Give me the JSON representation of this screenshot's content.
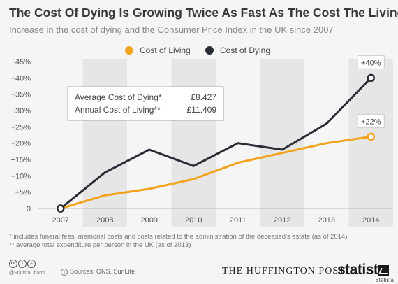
{
  "header": {
    "title": "The Cost Of Dying Is Growing Twice As Fast As The Cost The Living",
    "subtitle": "Increase in the cost of dying and the Consumer Price Index in the UK since 2007"
  },
  "chart_data": {
    "type": "line",
    "x": [
      "2007",
      "2008",
      "2009",
      "2010",
      "2011",
      "2012",
      "2013",
      "2014"
    ],
    "ylim": [
      0,
      45
    ],
    "yticks": [
      "0",
      "+5%",
      "+10%",
      "+15%",
      "+20%",
      "+25%",
      "+30%",
      "+35%",
      "+40%",
      "+45%"
    ],
    "grid": false,
    "legend": "top",
    "series": [
      {
        "name": "Cost of Living",
        "color": "#f2a31d",
        "values": [
          0,
          4,
          6,
          9,
          14,
          17,
          20,
          22
        ],
        "end_label": "+22%"
      },
      {
        "name": "Cost of Dying",
        "color": "#2b2d36",
        "values": [
          0,
          11,
          18,
          13,
          20,
          18,
          26,
          40
        ],
        "end_label": "+40%"
      }
    ],
    "info_box": [
      {
        "label": "Average Cost of Dying*",
        "value": "£8.427"
      },
      {
        "label": "Annual Cost of Living**",
        "value": "£11.409"
      }
    ]
  },
  "notes": [
    "*   includes funeral fees, memorial costs and costs related to the administration of the deceased's estate (as of 2014)",
    "** average total expenditure per person in the UK (as of 2013)"
  ],
  "footer": {
    "handle": "@StatistaCharts",
    "sources": "Sources: ONS, SunLife",
    "publisher": "THE HUFFINGTON POST",
    "brand": "statista",
    "watermark": "Statista",
    "license_icons": [
      "creative-commons-icon",
      "attribution-icon",
      "no-derivatives-icon"
    ]
  }
}
